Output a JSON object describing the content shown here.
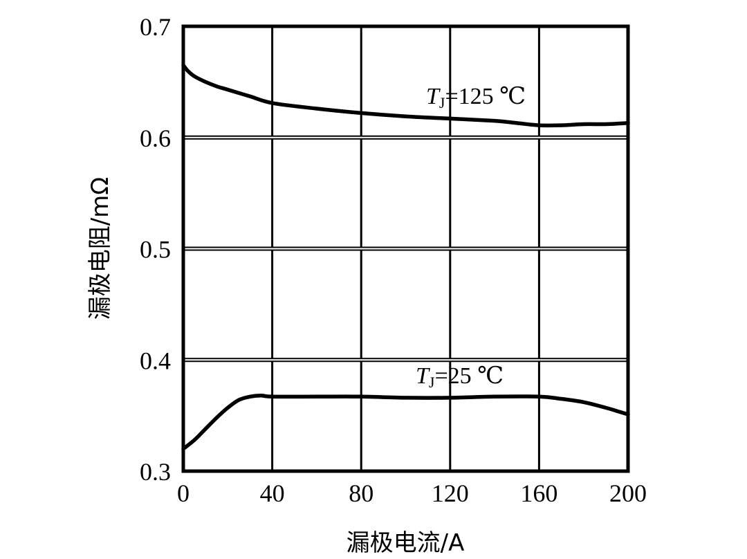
{
  "chart_data": {
    "type": "line",
    "title": "",
    "xlabel": "漏极电流/A",
    "ylabel": "漏极电阻/mΩ",
    "xlim": [
      0,
      200
    ],
    "ylim": [
      0.3,
      0.7
    ],
    "x_ticks": [
      "0",
      "40",
      "80",
      "120",
      "160",
      "200"
    ],
    "y_ticks": [
      "0.3",
      "0.4",
      "0.5",
      "0.6",
      "0.7"
    ],
    "grid": true,
    "series": [
      {
        "label_prefix": "T",
        "label_sub": "J",
        "label_suffix": "=125 ℃",
        "x": [
          0,
          2,
          5,
          10,
          15,
          20,
          30,
          40,
          60,
          80,
          100,
          120,
          140,
          150,
          160,
          170,
          180,
          190,
          200
        ],
        "y": [
          0.665,
          0.66,
          0.655,
          0.65,
          0.646,
          0.643,
          0.637,
          0.631,
          0.626,
          0.622,
          0.619,
          0.617,
          0.615,
          0.613,
          0.611,
          0.611,
          0.612,
          0.612,
          0.613
        ]
      },
      {
        "label_prefix": "T",
        "label_sub": "J",
        "label_suffix": "=25 ℃",
        "x": [
          0,
          5,
          10,
          15,
          20,
          25,
          30,
          35,
          40,
          60,
          80,
          100,
          120,
          140,
          160,
          170,
          180,
          190,
          200
        ],
        "y": [
          0.32,
          0.328,
          0.338,
          0.348,
          0.357,
          0.364,
          0.367,
          0.368,
          0.367,
          0.367,
          0.367,
          0.366,
          0.366,
          0.367,
          0.367,
          0.365,
          0.362,
          0.357,
          0.351
        ]
      }
    ]
  }
}
